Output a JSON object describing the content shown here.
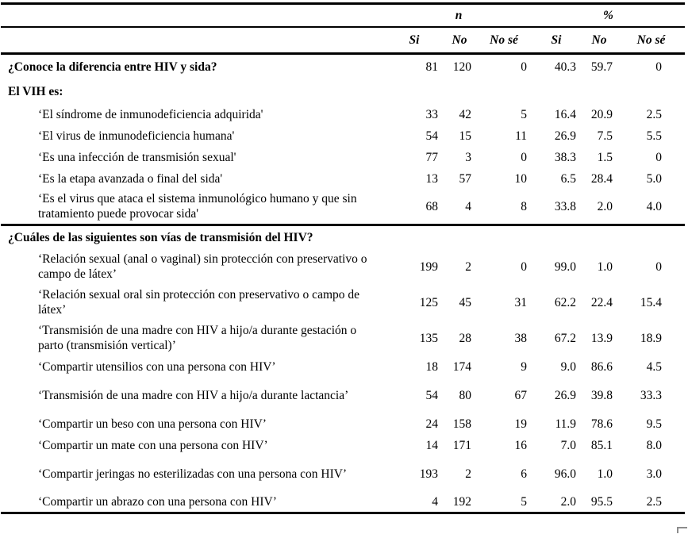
{
  "page": {
    "background": "#ffffff",
    "text_color": "#000000",
    "rule_color": "#000000",
    "handle_color": "#8c8c8c"
  },
  "table": {
    "group_headers": [
      "n",
      "%"
    ],
    "sub_headers": [
      "Si",
      "No",
      "No sé",
      "Si",
      "No",
      "No sé"
    ],
    "rows": [
      {
        "type": "question",
        "tall": false,
        "divider": false,
        "label": "¿Conoce la diferencia entre HIV y sida?",
        "values": [
          "81",
          "120",
          "0",
          "40.3",
          "59.7",
          "0"
        ]
      },
      {
        "type": "section",
        "tall": false,
        "divider": false,
        "label": "El VIH es:",
        "values": []
      },
      {
        "type": "item",
        "tall": false,
        "divider": false,
        "label": "‘El síndrome de inmunodeficiencia adquirida'",
        "values": [
          "33",
          "42",
          "5",
          "16.4",
          "20.9",
          "2.5"
        ]
      },
      {
        "type": "item",
        "tall": false,
        "divider": false,
        "label": "‘El virus de inmunodeficiencia humana'",
        "values": [
          "54",
          "15",
          "11",
          "26.9",
          "7.5",
          "5.5"
        ]
      },
      {
        "type": "item",
        "tall": false,
        "divider": false,
        "label": "‘Es una infección de transmisión sexual'",
        "values": [
          "77",
          "3",
          "0",
          "38.3",
          "1.5",
          "0"
        ]
      },
      {
        "type": "item",
        "tall": false,
        "divider": false,
        "label": "‘Es la etapa avanzada o final del sida'",
        "values": [
          "13",
          "57",
          "10",
          "6.5",
          "28.4",
          "5.0"
        ]
      },
      {
        "type": "item",
        "tall": true,
        "divider": false,
        "label": "‘Es el virus que ataca el sistema inmunológico humano y que sin tratamiento puede provocar sida'",
        "values": [
          "68",
          "4",
          "8",
          "33.8",
          "2.0",
          "4.0"
        ]
      },
      {
        "type": "section",
        "tall": false,
        "divider": true,
        "label": "¿Cuáles de las siguientes son vías de transmisión del HIV?",
        "values": []
      },
      {
        "type": "item",
        "tall": true,
        "divider": false,
        "label": "‘Relación sexual (anal o vaginal) sin protección con preservativo o campo de látex’",
        "values": [
          "199",
          "2",
          "0",
          "99.0",
          "1.0",
          "0"
        ]
      },
      {
        "type": "item",
        "tall": true,
        "divider": false,
        "label": "‘Relación sexual oral sin protección con preservativo o campo de látex’",
        "values": [
          "125",
          "45",
          "31",
          "62.2",
          "22.4",
          "15.4"
        ]
      },
      {
        "type": "item",
        "tall": true,
        "divider": false,
        "label": "‘Transmisión de una madre con HIV a hijo/a durante gestación o parto (transmisión vertical)’",
        "values": [
          "135",
          "28",
          "38",
          "67.2",
          "13.9",
          "18.9"
        ]
      },
      {
        "type": "item",
        "tall": false,
        "divider": false,
        "label": "‘Compartir utensilios con una persona con HIV’",
        "values": [
          "18",
          "174",
          "9",
          "9.0",
          "86.6",
          "4.5"
        ]
      },
      {
        "type": "item",
        "tall": true,
        "divider": false,
        "label": "‘Transmisión de una madre con HIV a hijo/a durante lactancia’",
        "values": [
          "54",
          "80",
          "67",
          "26.9",
          "39.8",
          "33.3"
        ]
      },
      {
        "type": "item",
        "tall": false,
        "divider": false,
        "label": "‘Compartir un beso con una persona con HIV’",
        "values": [
          "24",
          "158",
          "19",
          "11.9",
          "78.6",
          "9.5"
        ]
      },
      {
        "type": "item",
        "tall": false,
        "divider": false,
        "label": "‘Compartir un mate con una persona con HIV’",
        "values": [
          "14",
          "171",
          "16",
          "7.0",
          "85.1",
          "8.0"
        ]
      },
      {
        "type": "item",
        "tall": true,
        "divider": false,
        "label": "‘Compartir jeringas no esterilizadas con una persona con HIV’",
        "values": [
          "193",
          "2",
          "6",
          "96.0",
          "1.0",
          "3.0"
        ]
      },
      {
        "type": "item",
        "tall": false,
        "divider": false,
        "label": "‘Compartir un abrazo con una persona con HIV’",
        "values": [
          "4",
          "192",
          "5",
          "2.0",
          "95.5",
          "2.5"
        ]
      }
    ]
  }
}
